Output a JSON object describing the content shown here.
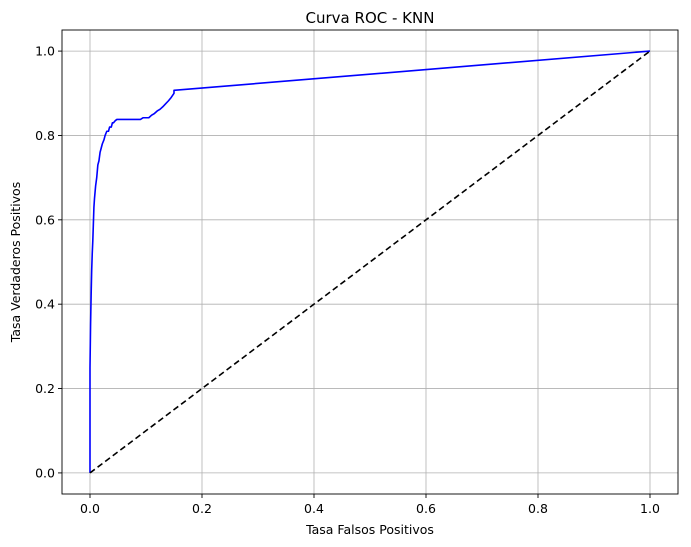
{
  "chart_data": {
    "type": "line",
    "title": "Curva ROC - KNN",
    "xlabel": "Tasa Falsos Positivos",
    "ylabel": "Tasa Verdaderos Positivos",
    "xlim": [
      -0.05,
      1.05
    ],
    "ylim": [
      -0.05,
      1.05
    ],
    "xticks": [
      0.0,
      0.2,
      0.4,
      0.6,
      0.8,
      1.0
    ],
    "yticks": [
      0.0,
      0.2,
      0.4,
      0.6,
      0.8,
      1.0
    ],
    "xtick_labels": [
      "0.0",
      "0.2",
      "0.4",
      "0.6",
      "0.8",
      "1.0"
    ],
    "ytick_labels": [
      "0.0",
      "0.2",
      "0.4",
      "0.6",
      "0.8",
      "1.0"
    ],
    "grid": true,
    "series": [
      {
        "style": "solid",
        "color": "#0000ff",
        "x": [
          0.0,
          0.0,
          0.001,
          0.002,
          0.003,
          0.004,
          0.005,
          0.006,
          0.007,
          0.008,
          0.01,
          0.012,
          0.014,
          0.016,
          0.018,
          0.02,
          0.022,
          0.025,
          0.027,
          0.03,
          0.033,
          0.035,
          0.038,
          0.04,
          0.042,
          0.045,
          0.048,
          0.05,
          0.07,
          0.09,
          0.095,
          0.1,
          0.105,
          0.11,
          0.115,
          0.12,
          0.125,
          0.13,
          0.135,
          0.14,
          0.145,
          0.15,
          0.15,
          1.0
        ],
        "y": [
          0.0,
          0.25,
          0.35,
          0.42,
          0.48,
          0.52,
          0.55,
          0.59,
          0.63,
          0.65,
          0.68,
          0.7,
          0.73,
          0.74,
          0.76,
          0.77,
          0.78,
          0.79,
          0.8,
          0.81,
          0.81,
          0.82,
          0.82,
          0.83,
          0.83,
          0.835,
          0.838,
          0.838,
          0.838,
          0.838,
          0.842,
          0.842,
          0.842,
          0.848,
          0.852,
          0.858,
          0.862,
          0.868,
          0.875,
          0.882,
          0.89,
          0.9,
          0.907,
          1.0
        ]
      },
      {
        "style": "dashed",
        "color": "#000000",
        "x": [
          0.0,
          1.0
        ],
        "y": [
          0.0,
          1.0
        ]
      }
    ]
  }
}
